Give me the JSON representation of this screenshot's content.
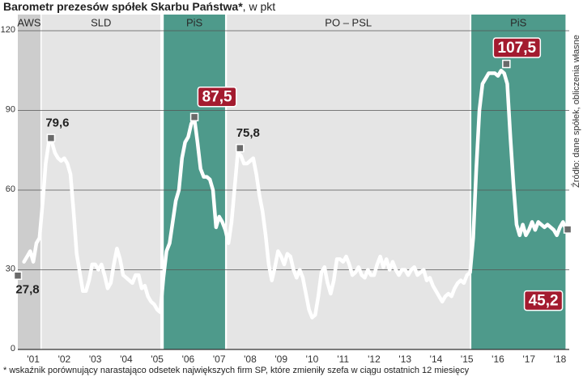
{
  "chart_data": {
    "type": "line",
    "title": "Barometr prezesów spółek Skarbu Państwa*",
    "subtitle": ", w pkt",
    "source": "Źródło: dane spółek, obliczenia własne",
    "footnote": "* wskaźnik porównujący narastająco odsetek największych firm SP, które zmieniły szefa w ciągu ostatnich 12 miesięcy",
    "xlim": [
      2001.0,
      2018.8
    ],
    "ylim": [
      0,
      120
    ],
    "yticks": [
      0,
      30,
      60,
      90,
      120
    ],
    "grid": true,
    "xticks": [
      {
        "value": 2001.5,
        "label": "'01"
      },
      {
        "value": 2002.5,
        "label": "'02"
      },
      {
        "value": 2003.5,
        "label": "'03"
      },
      {
        "value": 2004.5,
        "label": "'04"
      },
      {
        "value": 2005.5,
        "label": "'05"
      },
      {
        "value": 2006.5,
        "label": "'06"
      },
      {
        "value": 2007.5,
        "label": "'07"
      },
      {
        "value": 2008.5,
        "label": "'08"
      },
      {
        "value": 2009.5,
        "label": "'09"
      },
      {
        "value": 2010.5,
        "label": "'10"
      },
      {
        "value": 2011.5,
        "label": "'11"
      },
      {
        "value": 2012.5,
        "label": "'12"
      },
      {
        "value": 2013.5,
        "label": "'13"
      },
      {
        "value": 2014.5,
        "label": "'14"
      },
      {
        "value": 2015.5,
        "label": "'15"
      },
      {
        "value": 2016.5,
        "label": "'16"
      },
      {
        "value": 2017.5,
        "label": "'17"
      },
      {
        "value": 2018.5,
        "label": "'18"
      }
    ],
    "periods": [
      {
        "label": "AWS",
        "start": 2001.0,
        "end": 2001.73,
        "color": "#cdcdcd"
      },
      {
        "label": "SLD",
        "start": 2001.77,
        "end": 2005.6,
        "color": "#e5e5e5"
      },
      {
        "label": "PiS",
        "start": 2005.71,
        "end": 2007.69,
        "color": "#4e9a8b"
      },
      {
        "label": "PO – PSL",
        "start": 2007.75,
        "end": 2015.59,
        "color": "#e5e5e5"
      },
      {
        "label": "PiS",
        "start": 2015.64,
        "end": 2018.68,
        "color": "#4e9a8b"
      }
    ],
    "color": "#ffffff",
    "x": [
      2001.2,
      2001.3,
      2001.4,
      2001.5,
      2001.6,
      2001.7,
      2001.8,
      2001.9,
      2002.0,
      2002.1,
      2002.2,
      2002.3,
      2002.4,
      2002.5,
      2002.6,
      2002.7,
      2002.8,
      2002.9,
      2003.0,
      2003.1,
      2003.2,
      2003.3,
      2003.4,
      2003.5,
      2003.6,
      2003.7,
      2003.8,
      2003.9,
      2004.0,
      2004.1,
      2004.2,
      2004.3,
      2004.4,
      2004.5,
      2004.6,
      2004.7,
      2004.8,
      2004.9,
      2005.0,
      2005.1,
      2005.2,
      2005.3,
      2005.4,
      2005.5,
      2005.6,
      2005.7,
      2005.8,
      2005.9,
      2006.0,
      2006.1,
      2006.2,
      2006.3,
      2006.4,
      2006.5,
      2006.6,
      2006.7,
      2006.8,
      2006.9,
      2007.0,
      2007.1,
      2007.2,
      2007.3,
      2007.4,
      2007.5,
      2007.6,
      2007.7,
      2007.8,
      2007.9,
      2008.0,
      2008.1,
      2008.2,
      2008.3,
      2008.4,
      2008.5,
      2008.6,
      2008.7,
      2008.8,
      2008.9,
      2009.0,
      2009.1,
      2009.2,
      2009.3,
      2009.4,
      2009.5,
      2009.6,
      2009.7,
      2009.8,
      2009.9,
      2010.0,
      2010.1,
      2010.2,
      2010.3,
      2010.4,
      2010.5,
      2010.6,
      2010.7,
      2010.8,
      2010.9,
      2011.0,
      2011.1,
      2011.2,
      2011.3,
      2011.4,
      2011.5,
      2011.6,
      2011.7,
      2011.8,
      2011.9,
      2012.0,
      2012.1,
      2012.2,
      2012.3,
      2012.4,
      2012.5,
      2012.6,
      2012.7,
      2012.8,
      2012.9,
      2013.0,
      2013.1,
      2013.2,
      2013.3,
      2013.4,
      2013.5,
      2013.6,
      2013.7,
      2013.8,
      2013.9,
      2014.0,
      2014.1,
      2014.2,
      2014.3,
      2014.4,
      2014.5,
      2014.6,
      2014.7,
      2014.8,
      2014.9,
      2015.0,
      2015.1,
      2015.2,
      2015.3,
      2015.4,
      2015.5,
      2015.6,
      2015.7,
      2015.8,
      2015.9,
      2016.0,
      2016.1,
      2016.2,
      2016.3,
      2016.4,
      2016.5,
      2016.6,
      2016.7,
      2016.8,
      2016.9,
      2017.0,
      2017.1,
      2017.2,
      2017.3,
      2017.4,
      2017.5,
      2017.6,
      2017.7,
      2017.8,
      2017.9,
      2018.0,
      2018.1,
      2018.2,
      2018.3,
      2018.4,
      2018.5,
      2018.6,
      2018.7
    ],
    "values": [
      33,
      35,
      37,
      33,
      40,
      42,
      55,
      70,
      78,
      78,
      74,
      72,
      71,
      72,
      70,
      66,
      52,
      36,
      29,
      22,
      22,
      26,
      32,
      32,
      30,
      32,
      28,
      23,
      25,
      32,
      38,
      34,
      28,
      27,
      26,
      25,
      28,
      28,
      23,
      24,
      20,
      18,
      17,
      15,
      14,
      27,
      37,
      40,
      48,
      56,
      60,
      72,
      78,
      80,
      85,
      87,
      78,
      68,
      65,
      65,
      64,
      60,
      46,
      50,
      48,
      45,
      40,
      48,
      61,
      74,
      73,
      70,
      70,
      71,
      72,
      66,
      58,
      52,
      43,
      32,
      26,
      31,
      37,
      35,
      32,
      36,
      35,
      30,
      27,
      30,
      27,
      21,
      15,
      12,
      13,
      20,
      29,
      31,
      25,
      21,
      26,
      34,
      34,
      33,
      35,
      32,
      28,
      29,
      31,
      28,
      27,
      30,
      28,
      28,
      32,
      35,
      31,
      34,
      30,
      33,
      30,
      28,
      30,
      30,
      28,
      30,
      31,
      28,
      29,
      30,
      26,
      27,
      24,
      22,
      20,
      18,
      20,
      21,
      20,
      23,
      25,
      26,
      25,
      28,
      29,
      42,
      68,
      90,
      100,
      102,
      104,
      104,
      104,
      103,
      105,
      104,
      100,
      80,
      62,
      47,
      43,
      47,
      43,
      45,
      48,
      45,
      48,
      47,
      46,
      47,
      46,
      45,
      43,
      46,
      48,
      45
    ],
    "highlights": {
      "x": [
        2001.0,
        2002.07,
        2006.7,
        2008.17,
        2016.77,
        2018.75
      ],
      "values": [
        27.8,
        79.6,
        87.5,
        75.8,
        107.5,
        45.2
      ],
      "value_labels": [
        "27,8",
        "79,6",
        "87,5",
        "75,8",
        "107,5",
        "45,2"
      ],
      "boxed": [
        false,
        false,
        true,
        false,
        true,
        true
      ],
      "box_color": "#a31b2f",
      "marker_color": "#6a6a6a"
    }
  }
}
